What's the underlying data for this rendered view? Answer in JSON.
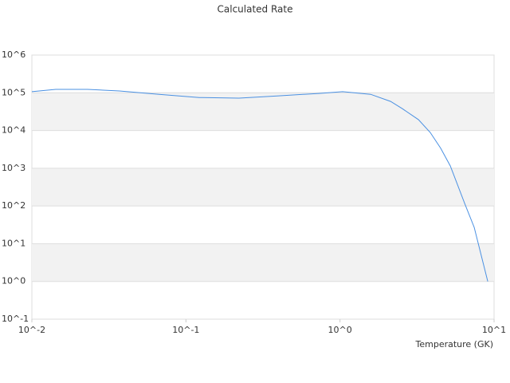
{
  "chart_data": {
    "type": "line",
    "title": "Calculated Rate",
    "x_label": "Temperature (GK)",
    "xscale": "log",
    "yscale": "log",
    "grid": true,
    "bands": true,
    "color": "#4a90e2",
    "xlim": [
      0.01,
      10
    ],
    "ylim": [
      0.1,
      1000000
    ],
    "xticks": [
      {
        "value": 0.01,
        "label": "10^-2"
      },
      {
        "value": 0.1,
        "label": "10^-1"
      },
      {
        "value": 1,
        "label": "10^0"
      },
      {
        "value": 10,
        "label": "10^1"
      }
    ],
    "yticks": [
      {
        "value": 0.1,
        "label": "10^-1"
      },
      {
        "value": 1,
        "label": "10^0"
      },
      {
        "value": 10,
        "label": "10^1"
      },
      {
        "value": 100,
        "label": "10^2"
      },
      {
        "value": 1000,
        "label": "10^3"
      },
      {
        "value": 10000,
        "label": "10^4"
      },
      {
        "value": 100000,
        "label": "10^5"
      },
      {
        "value": 1000000,
        "label": "10^6"
      }
    ],
    "x": [
      0.01,
      0.0143,
      0.023,
      0.037,
      0.067,
      0.122,
      0.221,
      0.401,
      0.728,
      1.04,
      1.58,
      2.13,
      2.54,
      3.23,
      3.85,
      4.5,
      5.2,
      6.44,
      7.43,
      9.1
    ],
    "values": [
      107000,
      123000,
      123000,
      112000,
      91000,
      75000,
      72000,
      83000,
      96000,
      107000,
      91000,
      59000,
      38000,
      19500,
      8900,
      3400,
      1150,
      117,
      27,
      1
    ]
  }
}
